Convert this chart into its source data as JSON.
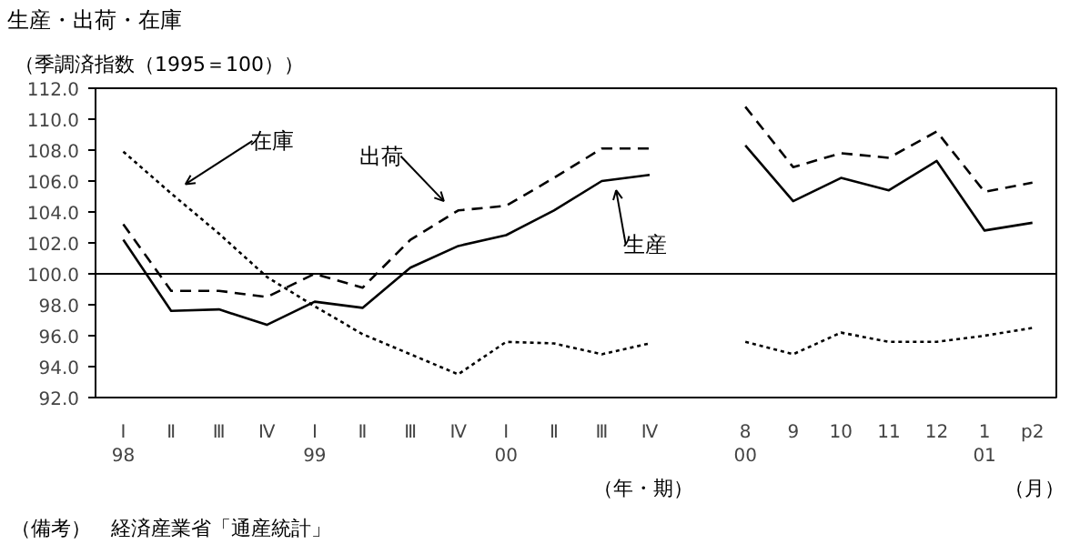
{
  "chart_data": {
    "type": "line",
    "title": "生産・出荷・在庫",
    "ylabel": "（季調済指数（1995＝100））",
    "categories": [
      "Ⅰ\n98",
      "Ⅱ",
      "Ⅲ",
      "Ⅳ",
      "Ⅰ\n99",
      "Ⅱ",
      "Ⅲ",
      "Ⅳ",
      "Ⅰ\n00",
      "Ⅱ",
      "Ⅲ",
      "Ⅳ",
      null,
      "8\n00",
      "9",
      "10",
      "11",
      "12",
      "1\n01",
      "p2"
    ],
    "series": [
      {
        "name": "生産",
        "color": "#000000",
        "line_style": "solid",
        "values": [
          102.2,
          97.6,
          97.7,
          96.7,
          98.2,
          97.8,
          100.4,
          101.8,
          102.5,
          104.1,
          106.0,
          106.4,
          null,
          108.3,
          104.7,
          106.2,
          105.4,
          107.3,
          102.8,
          103.3
        ]
      },
      {
        "name": "出荷",
        "color": "#000000",
        "line_style": "dashed",
        "values": [
          103.2,
          98.9,
          98.9,
          98.5,
          100.0,
          99.1,
          102.2,
          104.1,
          104.4,
          106.2,
          108.1,
          108.1,
          null,
          110.8,
          106.9,
          107.8,
          107.5,
          109.2,
          105.3,
          105.9
        ]
      },
      {
        "name": "在庫",
        "color": "#000000",
        "line_style": "dotted",
        "values": [
          107.9,
          105.2,
          102.6,
          99.8,
          97.9,
          96.1,
          94.8,
          93.5,
          95.6,
          95.5,
          94.8,
          95.5,
          null,
          95.6,
          94.8,
          96.2,
          95.6,
          95.6,
          96.0,
          96.5
        ]
      }
    ],
    "ylim": [
      92,
      112
    ],
    "yticks": [
      {
        "value": 92,
        "label": "92.0"
      },
      {
        "value": 94,
        "label": "94.0"
      },
      {
        "value": 96,
        "label": "96.0"
      },
      {
        "value": 98,
        "label": "98.0"
      },
      {
        "value": 100,
        "label": "100.0"
      },
      {
        "value": 102,
        "label": "102.0"
      },
      {
        "value": 104,
        "label": "104.0"
      },
      {
        "value": 106,
        "label": "106.0"
      },
      {
        "value": 108,
        "label": "108.0"
      },
      {
        "value": 110,
        "label": "110.0"
      },
      {
        "value": 112,
        "label": "112.0"
      }
    ],
    "ref_lines": [
      {
        "axis": "y",
        "value": 100,
        "color": "#000000",
        "line_style": "solid"
      }
    ],
    "annotations": [
      "（年・期）",
      "（月）",
      "（備考）　経済産業省「通産統計」"
    ],
    "grid": false,
    "marker": "none"
  }
}
